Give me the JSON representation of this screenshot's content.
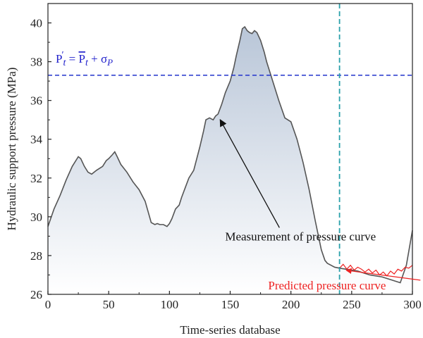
{
  "chart_data": {
    "type": "area",
    "xlabel": "Time-series database",
    "ylabel": "Hydraulic support pressure (MPa)",
    "xlim": [
      0,
      300
    ],
    "ylim": [
      26,
      41
    ],
    "x_ticks": [
      0,
      50,
      100,
      150,
      200,
      250,
      300
    ],
    "y_ticks": [
      26,
      28,
      30,
      32,
      34,
      36,
      38,
      40
    ],
    "grid": false,
    "colors": {
      "measured": "#555555",
      "predicted": "#ee2222",
      "threshold": "#2233cc",
      "vline": "#2aa0aa",
      "fill_top": "#b9c6d8",
      "fill_bottom": "#ffffff"
    },
    "series": [
      {
        "name": "Measurement of pressure curve",
        "x": [
          0,
          5,
          10,
          15,
          20,
          25,
          27,
          30,
          33,
          36,
          40,
          45,
          48,
          50,
          53,
          55,
          57,
          60,
          65,
          70,
          75,
          80,
          85,
          88,
          90,
          92,
          95,
          98,
          100,
          102,
          105,
          108,
          110,
          113,
          116,
          120,
          125,
          128,
          130,
          133,
          136,
          138,
          140,
          143,
          146,
          150,
          153,
          155,
          158,
          160,
          162,
          164,
          166,
          168,
          170,
          172,
          175,
          178,
          180,
          183,
          186,
          190,
          195,
          200,
          205,
          210,
          215,
          220,
          225,
          228,
          230,
          233,
          236,
          240,
          245,
          250,
          255,
          260,
          265,
          270,
          275,
          280,
          285,
          290,
          295,
          300
        ],
        "y": [
          29.5,
          30.4,
          31.1,
          31.9,
          32.6,
          33.1,
          33.0,
          32.6,
          32.3,
          32.2,
          32.4,
          32.6,
          32.9,
          33.0,
          33.2,
          33.35,
          33.1,
          32.7,
          32.3,
          31.8,
          31.4,
          30.8,
          29.7,
          29.6,
          29.65,
          29.6,
          29.6,
          29.5,
          29.65,
          29.9,
          30.4,
          30.6,
          31.0,
          31.5,
          32.0,
          32.4,
          33.6,
          34.4,
          35.0,
          35.1,
          35.0,
          35.2,
          35.3,
          35.8,
          36.4,
          37.0,
          37.7,
          38.3,
          39.1,
          39.7,
          39.8,
          39.6,
          39.5,
          39.45,
          39.6,
          39.5,
          39.1,
          38.5,
          38.0,
          37.4,
          36.8,
          36.0,
          35.1,
          34.9,
          34.0,
          32.8,
          31.4,
          29.8,
          28.3,
          27.75,
          27.6,
          27.5,
          27.4,
          27.35,
          27.3,
          27.25,
          27.2,
          27.1,
          27.0,
          26.95,
          26.9,
          26.8,
          26.7,
          26.6,
          27.5,
          29.3
        ]
      },
      {
        "name": "Predicted pressure curve",
        "x": [
          240,
          243,
          246,
          249,
          252,
          255,
          258,
          261,
          264,
          267,
          270,
          273,
          276,
          279,
          282,
          285,
          288,
          291,
          294,
          297,
          300
        ],
        "y": [
          27.35,
          27.55,
          27.3,
          27.5,
          27.25,
          27.4,
          27.3,
          27.15,
          27.3,
          27.1,
          27.25,
          27.0,
          27.15,
          26.95,
          27.2,
          27.05,
          27.3,
          27.2,
          27.4,
          27.35,
          27.5
        ]
      }
    ],
    "threshold_line": {
      "y": 37.3,
      "label_parts": [
        "P",
        "′",
        "t",
        " = ",
        "P",
        "t",
        " + σ",
        "P"
      ]
    },
    "vertical_line": {
      "x": 240
    },
    "annotations": [
      {
        "text": "Measurement of pressure curve",
        "text_x": 147,
        "text_y": 30.6,
        "arrow_to": [
          140,
          35.3
        ]
      },
      {
        "text": "Predicted pressure curve",
        "text_x": 183,
        "text_y": 26.95,
        "arrow_to": [
          242,
          27.35
        ]
      }
    ]
  }
}
